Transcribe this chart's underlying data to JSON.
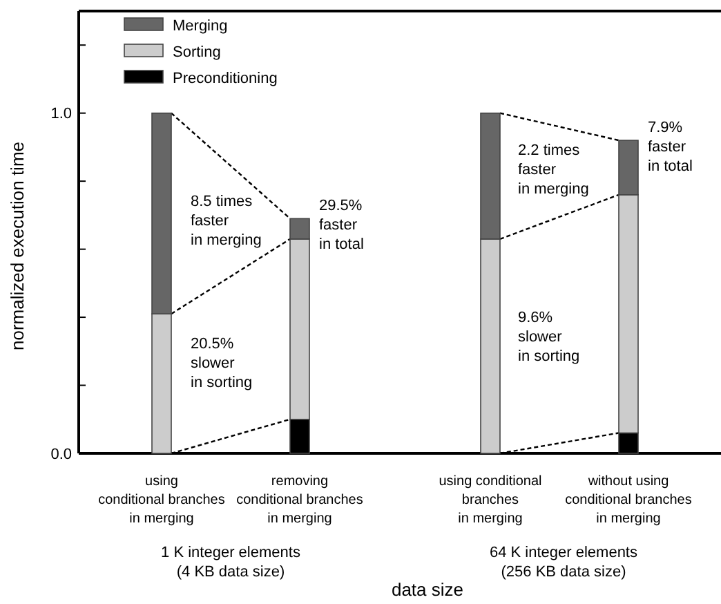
{
  "chart_data": {
    "type": "bar",
    "stacked": true,
    "xlabel": "data size",
    "ylabel": "normalized execution time",
    "categories": [
      "using\nconditional branches\nin merging",
      "removing\nconditional branches\nin merging",
      "using conditional\nbranches\nin merging",
      "without using\nconditional branches\nin merging"
    ],
    "series": [
      {
        "name": "Preconditioning",
        "color": "#000000",
        "values": [
          0,
          0.1,
          0,
          0.06
        ]
      },
      {
        "name": "Sorting",
        "color": "#cccccc",
        "values": [
          0.41,
          0.53,
          0.63,
          0.7
        ]
      },
      {
        "name": "Merging",
        "color": "#666666",
        "values": [
          0.59,
          0.06,
          0.37,
          0.16
        ]
      }
    ],
    "ylim": [
      0,
      1.3
    ],
    "yticks": [
      {
        "value": 0,
        "label": "0.0"
      },
      {
        "value": 0.2,
        "label": null
      },
      {
        "value": 0.4,
        "label": null
      },
      {
        "value": 0.6,
        "label": null
      },
      {
        "value": 0.8,
        "label": null
      },
      {
        "value": 1,
        "label": "1.0"
      },
      {
        "value": 1.2,
        "label": null
      }
    ],
    "legend": "top left",
    "annotations": [
      "8.5 times\nfaster\nin merging",
      "20.5%\nslower\nin sorting",
      {
        "text": "29.5%\nfaster\nin total",
        "x": "removing\nconditional branches\nin merging",
        "y": 0.69
      },
      "2.2 times\nfaster\nin merging",
      "9.6%\nslower\nin sorting",
      {
        "text": "7.9%\nfaster\nin total",
        "x": "without using\nconditional branches\nin merging",
        "y": 0.92
      },
      "1 K integer elements\n(4 KB data size)",
      "64 K integer elements\n(256 KB data size)"
    ]
  }
}
